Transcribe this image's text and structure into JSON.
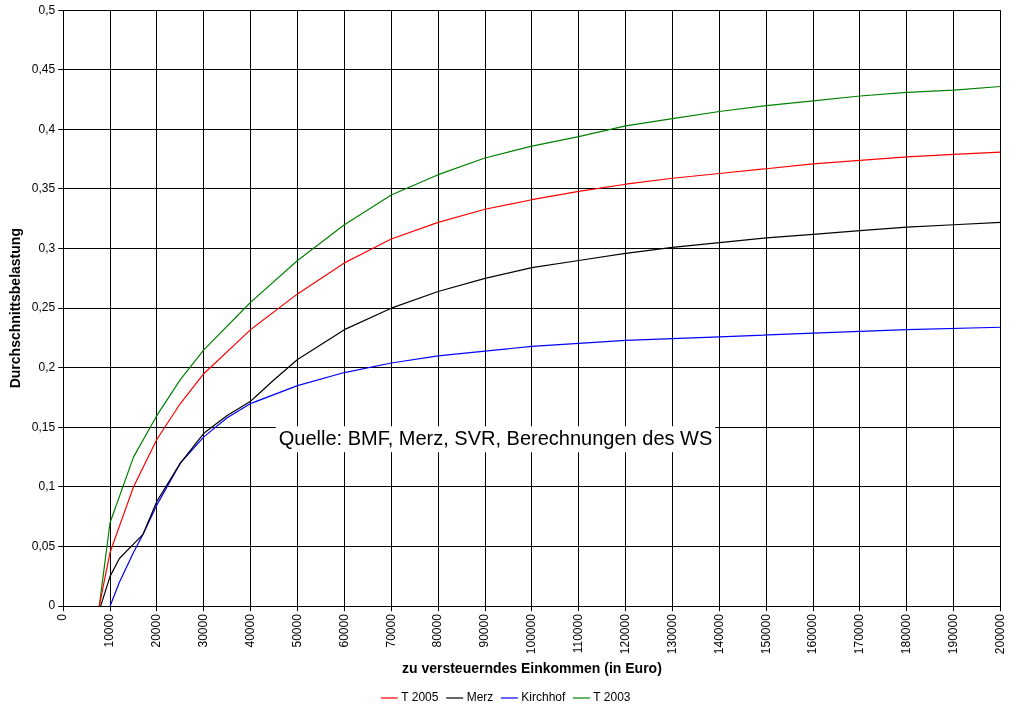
{
  "chart_data": {
    "type": "line",
    "xlabel": "zu versteuerndes Einkommen (in Euro)",
    "ylabel": "Durchschnittsbelastung",
    "annotations": [
      "Quelle: BMF, Merz, SVR, Berechnungen des WS"
    ],
    "xlim": [
      0,
      200000
    ],
    "xticks": [
      0,
      10000,
      20000,
      30000,
      40000,
      50000,
      60000,
      70000,
      80000,
      90000,
      100000,
      110000,
      120000,
      130000,
      140000,
      150000,
      160000,
      170000,
      180000,
      190000,
      200000
    ],
    "ylim": [
      0,
      0.5
    ],
    "yticks": [
      {
        "value": 0,
        "label": "0"
      },
      {
        "value": 0.05,
        "label": "0,05"
      },
      {
        "value": 0.1,
        "label": "0,1"
      },
      {
        "value": 0.15,
        "label": "0,15"
      },
      {
        "value": 0.2,
        "label": "0,2"
      },
      {
        "value": 0.25,
        "label": "0,25"
      },
      {
        "value": 0.3,
        "label": "0,3"
      },
      {
        "value": 0.35,
        "label": "0,35"
      },
      {
        "value": 0.4,
        "label": "0,4"
      },
      {
        "value": 0.45,
        "label": "0,45"
      },
      {
        "value": 0.5,
        "label": "0,5"
      }
    ],
    "grid": true,
    "legend": "bottom",
    "marker": "none",
    "line_style": "solid",
    "series": [
      {
        "name": "T 2005",
        "color": "#ff0000",
        "x": [
          7700,
          10000,
          15000,
          20000,
          25000,
          30000,
          40000,
          50000,
          60000,
          70000,
          80000,
          90000,
          100000,
          110000,
          120000,
          130000,
          140000,
          150000,
          160000,
          170000,
          180000,
          190000,
          200000
        ],
        "values": [
          0,
          0.045,
          0.1,
          0.14,
          0.17,
          0.195,
          0.232,
          0.262,
          0.288,
          0.308,
          0.322,
          0.333,
          0.341,
          0.348,
          0.354,
          0.359,
          0.363,
          0.367,
          0.371,
          0.374,
          0.377,
          0.379,
          0.381
        ]
      },
      {
        "name": "Merz",
        "color": "#000000",
        "x": [
          8000,
          10000,
          12000,
          15000,
          17000,
          20000,
          25000,
          30000,
          35000,
          40000,
          45000,
          50000,
          60000,
          70000,
          80000,
          90000,
          100000,
          110000,
          120000,
          130000,
          140000,
          150000,
          160000,
          170000,
          180000,
          190000,
          200000
        ],
        "values": [
          0,
          0.025,
          0.04,
          0.052,
          0.06,
          0.088,
          0.12,
          0.145,
          0.16,
          0.172,
          0.19,
          0.207,
          0.232,
          0.25,
          0.264,
          0.275,
          0.284,
          0.29,
          0.296,
          0.301,
          0.305,
          0.309,
          0.312,
          0.315,
          0.318,
          0.32,
          0.322
        ]
      },
      {
        "name": "Kirchhof",
        "color": "#0000ff",
        "x": [
          10000,
          12000,
          15000,
          17000,
          20000,
          25000,
          30000,
          35000,
          40000,
          50000,
          60000,
          70000,
          80000,
          90000,
          100000,
          120000,
          140000,
          160000,
          180000,
          200000
        ],
        "values": [
          0,
          0.02,
          0.045,
          0.06,
          0.085,
          0.12,
          0.142,
          0.158,
          0.17,
          0.185,
          0.196,
          0.204,
          0.21,
          0.214,
          0.218,
          0.223,
          0.226,
          0.229,
          0.232,
          0.234
        ]
      },
      {
        "name": "T 2003",
        "color": "#008000",
        "x": [
          7700,
          10000,
          15000,
          20000,
          25000,
          30000,
          40000,
          50000,
          60000,
          70000,
          80000,
          90000,
          100000,
          110000,
          120000,
          130000,
          140000,
          150000,
          160000,
          170000,
          180000,
          190000,
          200000
        ],
        "values": [
          0,
          0.07,
          0.125,
          0.16,
          0.19,
          0.215,
          0.255,
          0.29,
          0.32,
          0.345,
          0.362,
          0.376,
          0.386,
          0.394,
          0.403,
          0.409,
          0.415,
          0.42,
          0.424,
          0.428,
          0.431,
          0.433,
          0.436
        ]
      }
    ]
  }
}
